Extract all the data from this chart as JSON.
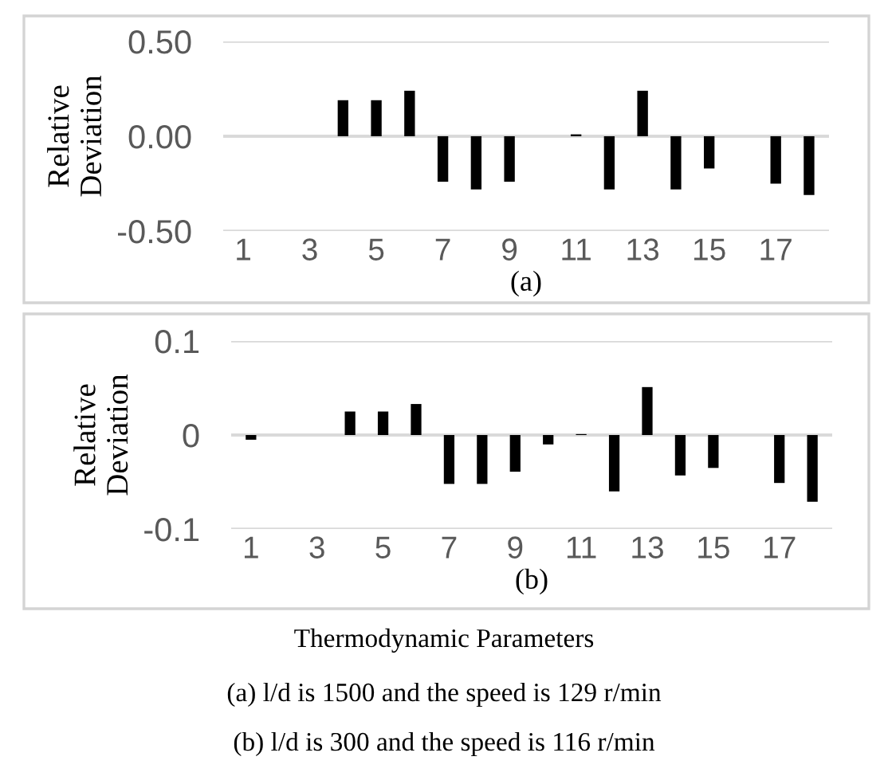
{
  "chart_data": [
    {
      "type": "bar",
      "xlabel": "(a)",
      "ylabel": "Relative\nDeviation",
      "categories": [
        "1",
        null,
        "3",
        null,
        "5",
        null,
        "7",
        null,
        "9",
        null,
        "11",
        null,
        "13",
        null,
        "15",
        null,
        "17",
        null
      ],
      "values": [
        0,
        0,
        0,
        0.19,
        0.19,
        0.24,
        -0.24,
        -0.28,
        -0.24,
        0,
        0.01,
        -0.28,
        0.24,
        -0.28,
        -0.17,
        0,
        -0.25,
        -0.31
      ],
      "color": "#000000",
      "ylim": [
        -0.5,
        0.5
      ],
      "yticks": [
        {
          "value": -0.5,
          "label": "-0.50"
        },
        {
          "value": 0,
          "label": "0.00"
        },
        {
          "value": 0.5,
          "label": "0.50"
        }
      ],
      "grid": "y"
    },
    {
      "type": "bar",
      "xlabel": "(b)",
      "ylabel": "Relative\nDeviation",
      "categories": [
        "1",
        null,
        "3",
        null,
        "5",
        null,
        "7",
        null,
        "9",
        null,
        "11",
        null,
        "13",
        null,
        "15",
        null,
        "17",
        null
      ],
      "values": [
        -0.005,
        0,
        0,
        0.025,
        0.025,
        0.033,
        -0.052,
        -0.052,
        -0.039,
        -0.01,
        0.001,
        -0.06,
        0.051,
        -0.043,
        -0.035,
        0,
        -0.051,
        -0.071
      ],
      "color": "#000000",
      "ylim": [
        -0.1,
        0.1
      ],
      "yticks": [
        {
          "value": -0.1,
          "label": "-0.1"
        },
        0,
        {
          "value": 0.1,
          "label": "0.1"
        }
      ],
      "grid": "y",
      "annotations": [
        "Thermodynamic Parameters",
        "(a) l/d is 1500 and the speed is 129 r/min",
        "(b) l/d is 300 and the speed is 116 r/min"
      ]
    }
  ]
}
